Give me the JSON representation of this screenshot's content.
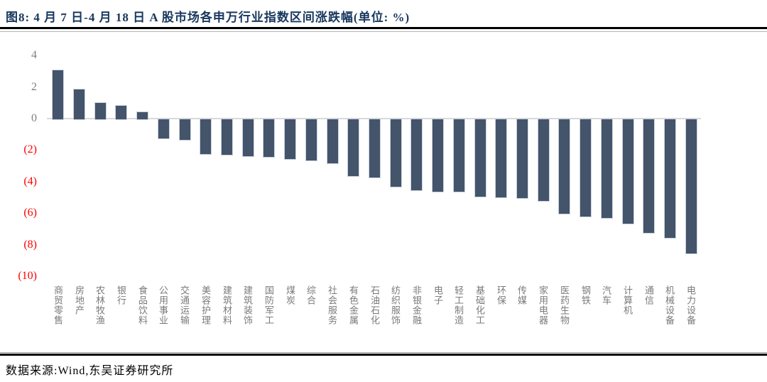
{
  "figure": {
    "title": "图8:  4 月 7 日-4 月 18 日 A 股市场各申万行业指数区间涨跌幅(单位: %)",
    "source": "数据来源:Wind,东吴证券研究所"
  },
  "colors": {
    "title": "#17375E",
    "bar": "#44546A",
    "bar_border": "#CBD3DF",
    "axis_line": "#D9D9D9",
    "tick_positive": "#7F7F7F",
    "tick_negative": "#FF0000",
    "category_label": "#7A7A7A"
  },
  "chart_data": {
    "type": "bar",
    "title": "4 月 7 日-4 月 18 日 A 股市场各申万行业指数区间涨跌幅",
    "unit": "%",
    "categories": [
      "商贸零售",
      "房地产",
      "农林牧渔",
      "银行",
      "食品饮料",
      "公用事业",
      "交通运输",
      "美容护理",
      "建筑材料",
      "建筑装饰",
      "国防军工",
      "煤炭",
      "综合",
      "社会服务",
      "有色金属",
      "石油石化",
      "纺织服饰",
      "非银金融",
      "电子",
      "轻工制造",
      "基础化工",
      "环保",
      "传媒",
      "家用电器",
      "医药生物",
      "钢铁",
      "汽车",
      "计算机",
      "通信",
      "机械设备",
      "电力设备"
    ],
    "values": [
      3.1,
      1.9,
      1.05,
      0.85,
      0.45,
      -1.2,
      -1.3,
      -2.2,
      -2.25,
      -2.35,
      -2.4,
      -2.5,
      -2.6,
      -2.8,
      -3.6,
      -3.7,
      -4.3,
      -4.5,
      -4.6,
      -4.6,
      -4.9,
      -4.95,
      -5.0,
      -5.2,
      -6.0,
      -6.15,
      -6.25,
      -6.6,
      -7.2,
      -7.5,
      -8.5
    ],
    "ylim": [
      -10,
      4
    ],
    "ytick_values": [
      4,
      2,
      0,
      -2,
      -4,
      -6,
      -8,
      -10
    ],
    "ytick_labels": [
      "4",
      "2",
      "0",
      "(2)",
      "(4)",
      "(6)",
      "(8)",
      "(10)"
    ],
    "xlabel": "",
    "ylabel": "",
    "grid": false,
    "legend": "none"
  }
}
